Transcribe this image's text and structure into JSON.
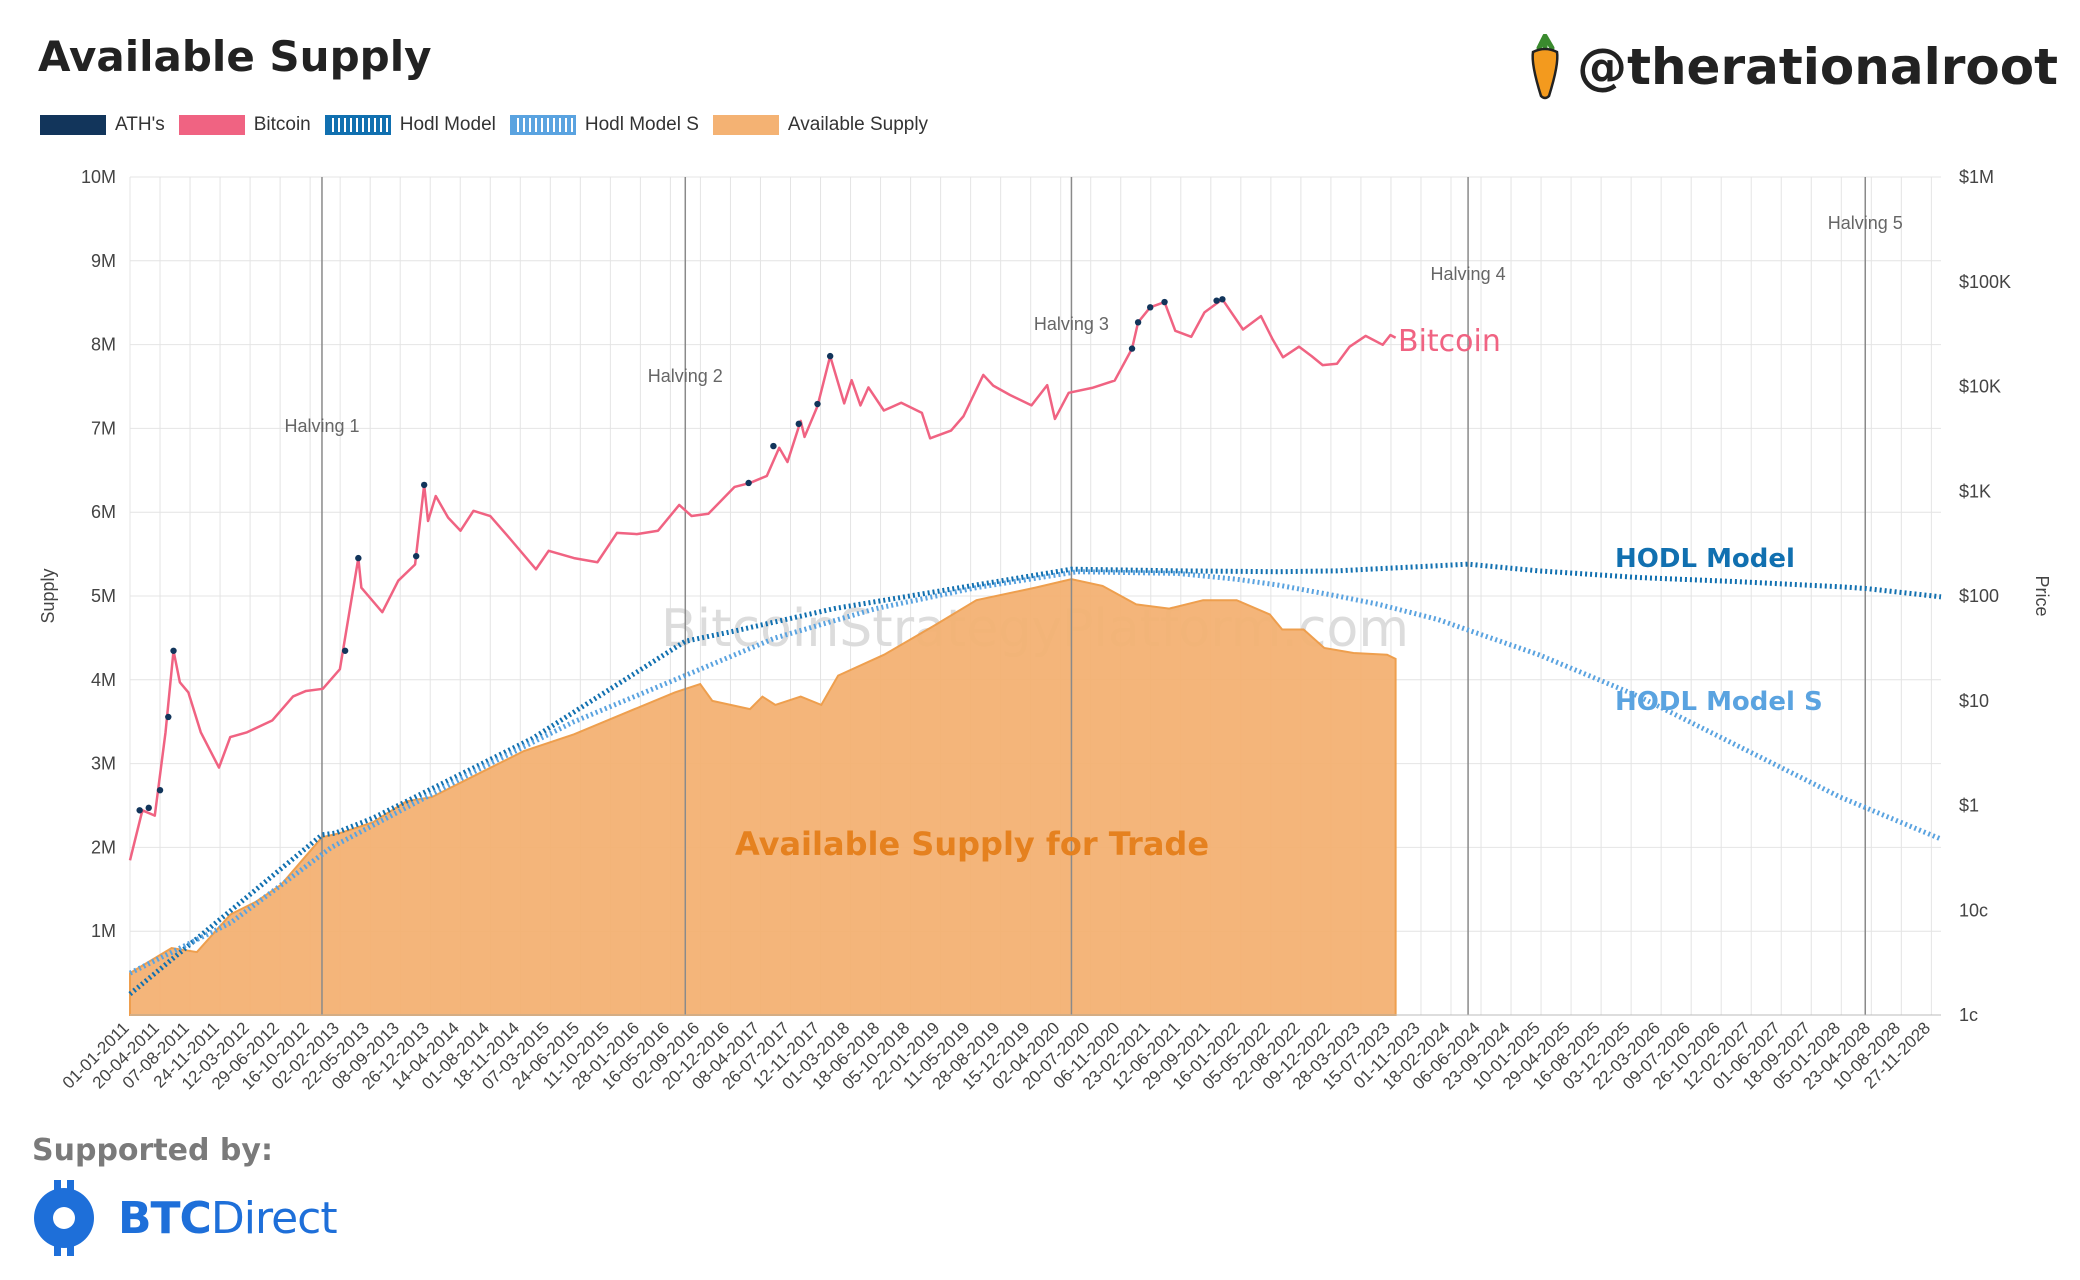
{
  "header": {
    "title": "Available Supply",
    "handle": "@therationalroot",
    "handle_icon": "carrot-icon"
  },
  "legend": [
    {
      "label": "ATH's",
      "color": "#12355b",
      "style": "solid"
    },
    {
      "label": "Bitcoin",
      "color": "#f06382",
      "style": "solid"
    },
    {
      "label": "Hodl Model",
      "color": "#1170b0",
      "style": "dotted"
    },
    {
      "label": "Hodl Model S",
      "color": "#5aa3e0",
      "style": "dotted"
    },
    {
      "label": "Available Supply",
      "color": "#f4b273",
      "style": "solid"
    }
  ],
  "footer": {
    "supported_label": "Supported by:",
    "sponsor_bold": "BTC",
    "sponsor_regular": "Direct",
    "sponsor_icon": "btc-direct-logo-icon"
  },
  "colors": {
    "bitcoin": "#f06382",
    "ath": "#12355b",
    "hodl": "#1170b0",
    "hodl_s": "#5aa3e0",
    "supply_fill": "#f4b273",
    "supply_line": "#ee9a45",
    "annotation_supply": "#e5811f"
  },
  "chart_data": {
    "type": "line",
    "watermark": "BitcoinStrategyPlatform.com",
    "xlim": [
      "2011-01-01",
      "2029-01-01"
    ],
    "x_ticks": [
      "01-01-2011",
      "20-04-2011",
      "07-08-2011",
      "24-11-2011",
      "12-03-2012",
      "29-06-2012",
      "16-10-2012",
      "02-02-2013",
      "22-05-2013",
      "08-09-2013",
      "26-12-2013",
      "14-04-2014",
      "01-08-2014",
      "18-11-2014",
      "07-03-2015",
      "24-06-2015",
      "11-10-2015",
      "28-01-2016",
      "16-05-2016",
      "02-09-2016",
      "20-12-2016",
      "08-04-2017",
      "26-07-2017",
      "12-11-2017",
      "01-03-2018",
      "18-06-2018",
      "05-10-2018",
      "22-01-2019",
      "11-05-2019",
      "28-08-2019",
      "15-12-2019",
      "02-04-2020",
      "20-07-2020",
      "06-11-2020",
      "23-02-2021",
      "12-06-2021",
      "29-09-2021",
      "16-01-2022",
      "05-05-2022",
      "22-08-2022",
      "09-12-2022",
      "28-03-2023",
      "15-07-2023",
      "01-11-2023",
      "18-02-2024",
      "06-06-2024",
      "23-09-2024",
      "10-01-2025",
      "29-04-2025",
      "16-08-2025",
      "03-12-2025",
      "22-03-2026",
      "09-07-2026",
      "26-10-2026",
      "12-02-2027",
      "01-06-2027",
      "18-09-2027",
      "05-01-2028",
      "23-04-2028",
      "10-08-2028",
      "27-11-2028"
    ],
    "y_left": {
      "label": "Supply",
      "ylim": [
        0,
        10000000
      ],
      "ticks": [
        "1M",
        "2M",
        "3M",
        "4M",
        "5M",
        "6M",
        "7M",
        "8M",
        "9M",
        "10M"
      ]
    },
    "y_right": {
      "label": "Price",
      "scale": "log",
      "ylim": [
        0.01,
        1000000
      ],
      "ticks": [
        "1c",
        "10c",
        "$1",
        "$10",
        "$100",
        "$1K",
        "$10K",
        "$100K",
        "$1M"
      ]
    },
    "halvings": [
      {
        "label": "Halving 1",
        "date": "2012-11-28"
      },
      {
        "label": "Halving 2",
        "date": "2016-07-09"
      },
      {
        "label": "Halving 3",
        "date": "2020-05-11"
      },
      {
        "label": "Halving 4",
        "date": "2024-04-20"
      },
      {
        "label": "Halving 5",
        "date": "2028-04-01"
      }
    ],
    "annotations": [
      {
        "text": "Bitcoin",
        "series": "Bitcoin"
      },
      {
        "text": "HODL Model",
        "series": "Hodl Model"
      },
      {
        "text": "HODL Model S",
        "series": "Hodl Model S"
      },
      {
        "text": "Available Supply for Trade",
        "series": "Available Supply"
      }
    ],
    "series": [
      {
        "name": "Bitcoin",
        "axis": "right",
        "points": [
          [
            "2011-01-01",
            0.3
          ],
          [
            "2011-02-15",
            0.9
          ],
          [
            "2011-04-01",
            0.8
          ],
          [
            "2011-05-10",
            5
          ],
          [
            "2011-06-08",
            30
          ],
          [
            "2011-07-01",
            15
          ],
          [
            "2011-08-01",
            12
          ],
          [
            "2011-09-15",
            5
          ],
          [
            "2011-11-20",
            2.3
          ],
          [
            "2011-12-31",
            4.5
          ],
          [
            "2012-03-01",
            5
          ],
          [
            "2012-06-01",
            6.5
          ],
          [
            "2012-08-15",
            11
          ],
          [
            "2012-10-01",
            12.4
          ],
          [
            "2012-12-01",
            13
          ],
          [
            "2013-02-01",
            20
          ],
          [
            "2013-04-09",
            230
          ],
          [
            "2013-04-20",
            120
          ],
          [
            "2013-07-05",
            70
          ],
          [
            "2013-09-01",
            140
          ],
          [
            "2013-11-01",
            200
          ],
          [
            "2013-12-04",
            1150
          ],
          [
            "2013-12-18",
            520
          ],
          [
            "2014-01-15",
            900
          ],
          [
            "2014-03-01",
            560
          ],
          [
            "2014-04-15",
            420
          ],
          [
            "2014-06-01",
            650
          ],
          [
            "2014-08-01",
            580
          ],
          [
            "2014-10-01",
            380
          ],
          [
            "2015-01-14",
            180
          ],
          [
            "2015-03-01",
            270
          ],
          [
            "2015-06-01",
            230
          ],
          [
            "2015-08-25",
            210
          ],
          [
            "2015-11-04",
            400
          ],
          [
            "2016-01-15",
            390
          ],
          [
            "2016-04-01",
            420
          ],
          [
            "2016-06-17",
            740
          ],
          [
            "2016-08-01",
            580
          ],
          [
            "2016-10-01",
            610
          ],
          [
            "2017-01-04",
            1100
          ],
          [
            "2017-03-01",
            1200
          ],
          [
            "2017-05-01",
            1400
          ],
          [
            "2017-06-15",
            2600
          ],
          [
            "2017-07-15",
            1900
          ],
          [
            "2017-09-01",
            4700
          ],
          [
            "2017-09-15",
            3300
          ],
          [
            "2017-11-01",
            6500
          ],
          [
            "2017-12-17",
            19500
          ],
          [
            "2018-02-06",
            6900
          ],
          [
            "2018-03-05",
            11500
          ],
          [
            "2018-04-06",
            6600
          ],
          [
            "2018-05-05",
            9800
          ],
          [
            "2018-06-30",
            5900
          ],
          [
            "2018-09-01",
            7000
          ],
          [
            "2018-11-15",
            5600
          ],
          [
            "2018-12-15",
            3200
          ],
          [
            "2019-03-01",
            3800
          ],
          [
            "2019-04-15",
            5200
          ],
          [
            "2019-06-26",
            12900
          ],
          [
            "2019-08-01",
            10200
          ],
          [
            "2019-10-01",
            8300
          ],
          [
            "2019-12-18",
            6600
          ],
          [
            "2020-02-13",
            10300
          ],
          [
            "2020-03-12",
            4900
          ],
          [
            "2020-05-01",
            8700
          ],
          [
            "2020-07-25",
            9700
          ],
          [
            "2020-10-15",
            11400
          ],
          [
            "2020-12-17",
            23000
          ],
          [
            "2021-01-08",
            41000
          ],
          [
            "2021-02-21",
            57000
          ],
          [
            "2021-04-14",
            64000
          ],
          [
            "2021-05-23",
            34000
          ],
          [
            "2021-07-20",
            29800
          ],
          [
            "2021-09-06",
            51000
          ],
          [
            "2021-11-10",
            68000
          ],
          [
            "2022-01-24",
            35000
          ],
          [
            "2022-03-30",
            47000
          ],
          [
            "2022-05-12",
            28000
          ],
          [
            "2022-06-18",
            19000
          ],
          [
            "2022-08-15",
            24000
          ],
          [
            "2022-09-30",
            19500
          ],
          [
            "2022-11-09",
            16000
          ],
          [
            "2022-12-31",
            16500
          ],
          [
            "2023-02-15",
            24000
          ],
          [
            "2023-04-14",
            30400
          ],
          [
            "2023-06-15",
            25000
          ],
          [
            "2023-07-13",
            31000
          ],
          [
            "2023-08-01",
            29200
          ]
        ]
      },
      {
        "name": "ATH's",
        "axis": "right",
        "points": [
          [
            "2011-02-05",
            0.9
          ],
          [
            "2011-03-10",
            0.95
          ],
          [
            "2011-04-20",
            1.4
          ],
          [
            "2011-05-20",
            7
          ],
          [
            "2011-06-08",
            30
          ],
          [
            "2013-02-20",
            30
          ],
          [
            "2013-04-09",
            230
          ],
          [
            "2013-11-05",
            240
          ],
          [
            "2013-12-04",
            1150
          ],
          [
            "2017-02-24",
            1200
          ],
          [
            "2017-05-25",
            2700
          ],
          [
            "2017-08-25",
            4400
          ],
          [
            "2017-11-01",
            6800
          ],
          [
            "2017-12-17",
            19500
          ],
          [
            "2020-12-17",
            23000
          ],
          [
            "2021-01-08",
            41000
          ],
          [
            "2021-02-21",
            57000
          ],
          [
            "2021-04-14",
            64000
          ],
          [
            "2021-10-20",
            66000
          ],
          [
            "2021-11-10",
            68000
          ]
        ]
      },
      {
        "name": "Hodl Model",
        "axis": "left",
        "points": [
          [
            "2011-01-01",
            250000
          ],
          [
            "2012-11-28",
            2150000
          ],
          [
            "2013-01-15",
            2170000
          ],
          [
            "2013-06-01",
            2350000
          ],
          [
            "2015-01-01",
            3300000
          ],
          [
            "2016-07-09",
            4460000
          ],
          [
            "2017-01-01",
            4580000
          ],
          [
            "2018-01-01",
            4850000
          ],
          [
            "2019-01-01",
            5050000
          ],
          [
            "2020-05-11",
            5320000
          ],
          [
            "2021-06-01",
            5300000
          ],
          [
            "2022-06-01",
            5290000
          ],
          [
            "2023-01-01",
            5300000
          ],
          [
            "2024-04-20",
            5380000
          ],
          [
            "2025-01-01",
            5300000
          ],
          [
            "2026-01-01",
            5220000
          ],
          [
            "2027-01-01",
            5170000
          ],
          [
            "2028-01-01",
            5110000
          ],
          [
            "2028-04-01",
            5090000
          ],
          [
            "2029-01-01",
            4990000
          ]
        ]
      },
      {
        "name": "Hodl Model S",
        "axis": "left",
        "points": [
          [
            "2011-01-01",
            500000
          ],
          [
            "2012-01-01",
            1100000
          ],
          [
            "2013-01-01",
            2000000
          ],
          [
            "2014-06-01",
            2900000
          ],
          [
            "2015-06-01",
            3500000
          ],
          [
            "2016-06-01",
            4000000
          ],
          [
            "2017-06-01",
            4500000
          ],
          [
            "2018-06-01",
            4850000
          ],
          [
            "2019-06-01",
            5100000
          ],
          [
            "2020-06-01",
            5290000
          ],
          [
            "2021-06-01",
            5270000
          ],
          [
            "2022-01-01",
            5200000
          ],
          [
            "2022-06-01",
            5130000
          ],
          [
            "2023-01-01",
            5000000
          ],
          [
            "2023-06-01",
            4900000
          ],
          [
            "2024-01-01",
            4720000
          ],
          [
            "2025-01-01",
            4300000
          ],
          [
            "2026-01-01",
            3800000
          ],
          [
            "2027-01-01",
            3200000
          ],
          [
            "2028-01-01",
            2600000
          ],
          [
            "2029-01-01",
            2100000
          ]
        ]
      },
      {
        "name": "Available Supply",
        "axis": "left",
        "points": [
          [
            "2011-01-01",
            500000
          ],
          [
            "2011-06-01",
            800000
          ],
          [
            "2011-09-01",
            750000
          ],
          [
            "2012-01-01",
            1200000
          ],
          [
            "2012-04-01",
            1350000
          ],
          [
            "2012-07-01",
            1550000
          ],
          [
            "2012-10-01",
            1900000
          ],
          [
            "2012-11-28",
            2120000
          ],
          [
            "2013-02-01",
            2170000
          ],
          [
            "2013-06-01",
            2300000
          ],
          [
            "2013-10-01",
            2550000
          ],
          [
            "2014-01-01",
            2600000
          ],
          [
            "2014-06-01",
            2850000
          ],
          [
            "2014-12-01",
            3150000
          ],
          [
            "2015-06-01",
            3350000
          ],
          [
            "2015-12-01",
            3600000
          ],
          [
            "2016-06-01",
            3850000
          ],
          [
            "2016-09-01",
            3950000
          ],
          [
            "2016-10-15",
            3750000
          ],
          [
            "2017-03-01",
            3650000
          ],
          [
            "2017-04-15",
            3800000
          ],
          [
            "2017-06-01",
            3700000
          ],
          [
            "2017-09-01",
            3800000
          ],
          [
            "2017-11-15",
            3700000
          ],
          [
            "2018-01-15",
            4050000
          ],
          [
            "2018-07-01",
            4300000
          ],
          [
            "2019-01-01",
            4650000
          ],
          [
            "2019-06-01",
            4950000
          ],
          [
            "2020-01-01",
            5100000
          ],
          [
            "2020-05-11",
            5200000
          ],
          [
            "2020-09-01",
            5120000
          ],
          [
            "2021-01-01",
            4900000
          ],
          [
            "2021-05-01",
            4850000
          ],
          [
            "2021-09-01",
            4950000
          ],
          [
            "2022-01-01",
            4950000
          ],
          [
            "2022-05-01",
            4780000
          ],
          [
            "2022-06-15",
            4600000
          ],
          [
            "2022-09-01",
            4600000
          ],
          [
            "2022-11-15",
            4380000
          ],
          [
            "2023-03-01",
            4320000
          ],
          [
            "2023-07-01",
            4300000
          ],
          [
            "2023-08-01",
            4250000
          ]
        ]
      }
    ]
  }
}
